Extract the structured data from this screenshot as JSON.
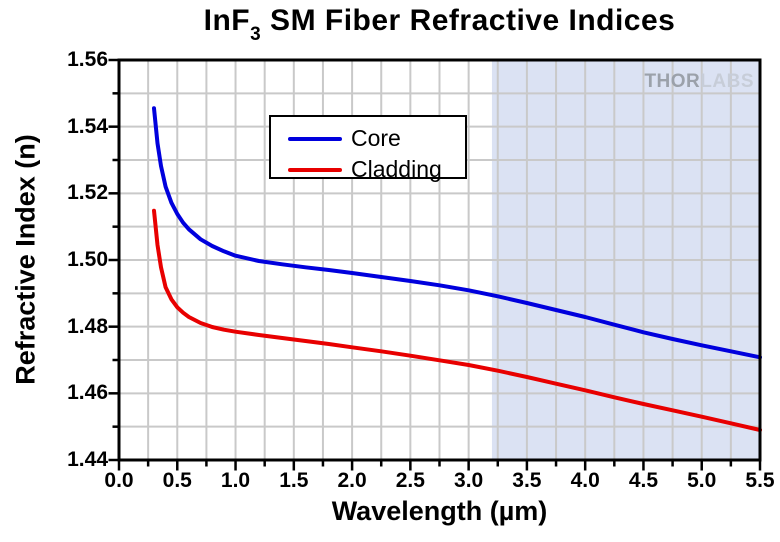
{
  "title": {
    "prefix": "InF",
    "subscript": "3",
    "suffix": " SM Fiber Refractive Indices"
  },
  "watermark": {
    "bold": "THOR",
    "light": "LABS"
  },
  "colors": {
    "background": "#ffffff",
    "frame_and_text": "#000000",
    "grid": "#c9c9c9",
    "shaded_band": "#dbe2f3",
    "watermark_thor": "#9ba1aa",
    "watermark_labs": "#c7cdd8"
  },
  "chart_data": {
    "type": "line",
    "title": "InF3 SM Fiber Refractive Indices",
    "xlabel": "Wavelength (µm)",
    "ylabel": "Refractive Index (n)",
    "xlim": [
      0.0,
      5.5
    ],
    "ylim": [
      1.44,
      1.56
    ],
    "x_major_ticks": [
      "0.0",
      "0.5",
      "1.0",
      "1.5",
      "2.0",
      "2.5",
      "3.0",
      "3.5",
      "4.0",
      "4.5",
      "5.0",
      "5.5"
    ],
    "y_major_ticks": [
      "1.44",
      "1.46",
      "1.48",
      "1.50",
      "1.52",
      "1.54",
      "1.56"
    ],
    "x_minor_step": 0.25,
    "y_minor_step": 0.01,
    "grid": "major+minor",
    "legend_position": "upper left inside",
    "shaded_band": {
      "x_start": 3.2,
      "x_end": 5.5
    },
    "series": [
      {
        "name": "Core",
        "color": "#0000dd",
        "x": [
          0.3,
          0.33,
          0.36,
          0.4,
          0.45,
          0.5,
          0.55,
          0.6,
          0.7,
          0.8,
          0.9,
          1.0,
          1.2,
          1.4,
          1.6,
          1.8,
          2.0,
          2.25,
          2.5,
          2.75,
          3.0,
          3.25,
          3.5,
          3.75,
          4.0,
          4.25,
          4.5,
          4.75,
          5.0,
          5.25,
          5.5
        ],
        "y": [
          1.5455,
          1.535,
          1.5282,
          1.522,
          1.5172,
          1.5138,
          1.5112,
          1.5092,
          1.5062,
          1.5042,
          1.5026,
          1.5013,
          1.4997,
          1.4987,
          1.4978,
          1.497,
          1.4961,
          1.4949,
          1.4937,
          1.4924,
          1.4909,
          1.4891,
          1.4871,
          1.485,
          1.4829,
          1.4806,
          1.4783,
          1.4763,
          1.4744,
          1.4726,
          1.4708
        ]
      },
      {
        "name": "Cladding",
        "color": "#e80000",
        "x": [
          0.3,
          0.33,
          0.36,
          0.4,
          0.45,
          0.5,
          0.55,
          0.6,
          0.7,
          0.8,
          0.9,
          1.0,
          1.2,
          1.4,
          1.6,
          1.8,
          2.0,
          2.25,
          2.5,
          2.75,
          3.0,
          3.25,
          3.5,
          3.75,
          4.0,
          4.25,
          4.5,
          4.75,
          5.0,
          5.25,
          5.5
        ],
        "y": [
          1.5148,
          1.5045,
          1.4978,
          1.4918,
          1.4882,
          1.4858,
          1.4842,
          1.4829,
          1.4811,
          1.4799,
          1.4791,
          1.4785,
          1.4775,
          1.4766,
          1.4757,
          1.4748,
          1.4738,
          1.4726,
          1.4713,
          1.4699,
          1.4685,
          1.4668,
          1.4649,
          1.4629,
          1.4609,
          1.4588,
          1.4568,
          1.4549,
          1.453,
          1.451,
          1.449
        ]
      }
    ]
  }
}
